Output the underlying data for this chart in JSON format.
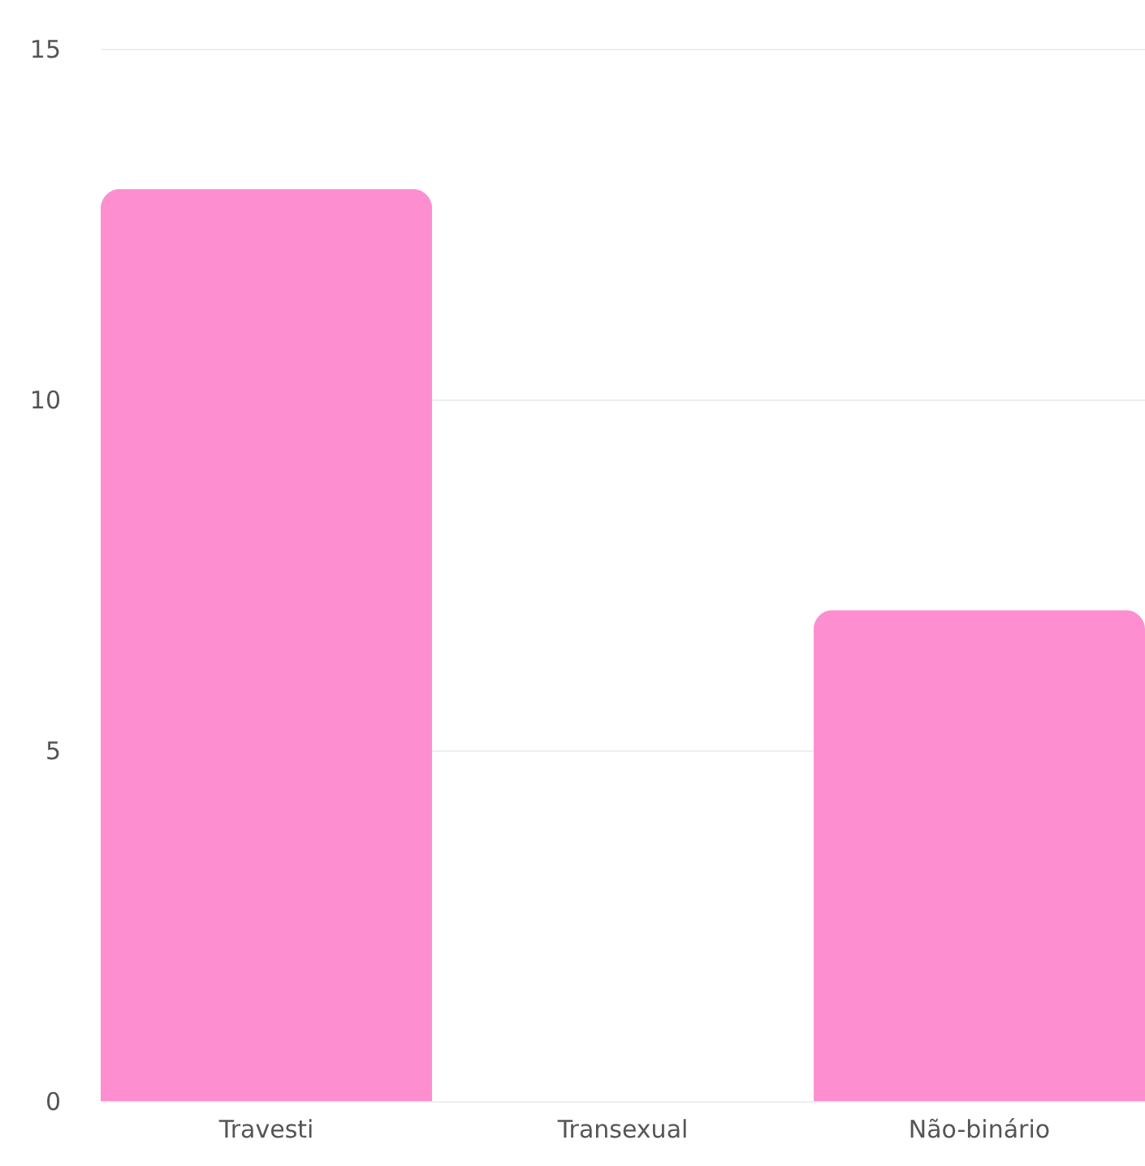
{
  "chart_data": {
    "type": "bar",
    "categories": [
      "Travesti",
      "Transexual",
      "Não-binário"
    ],
    "values": [
      13,
      0,
      7
    ],
    "color": "#fd8fd1",
    "ylim": [
      0,
      15
    ],
    "yticks": [
      0,
      5,
      10,
      15
    ],
    "grid": "y"
  }
}
